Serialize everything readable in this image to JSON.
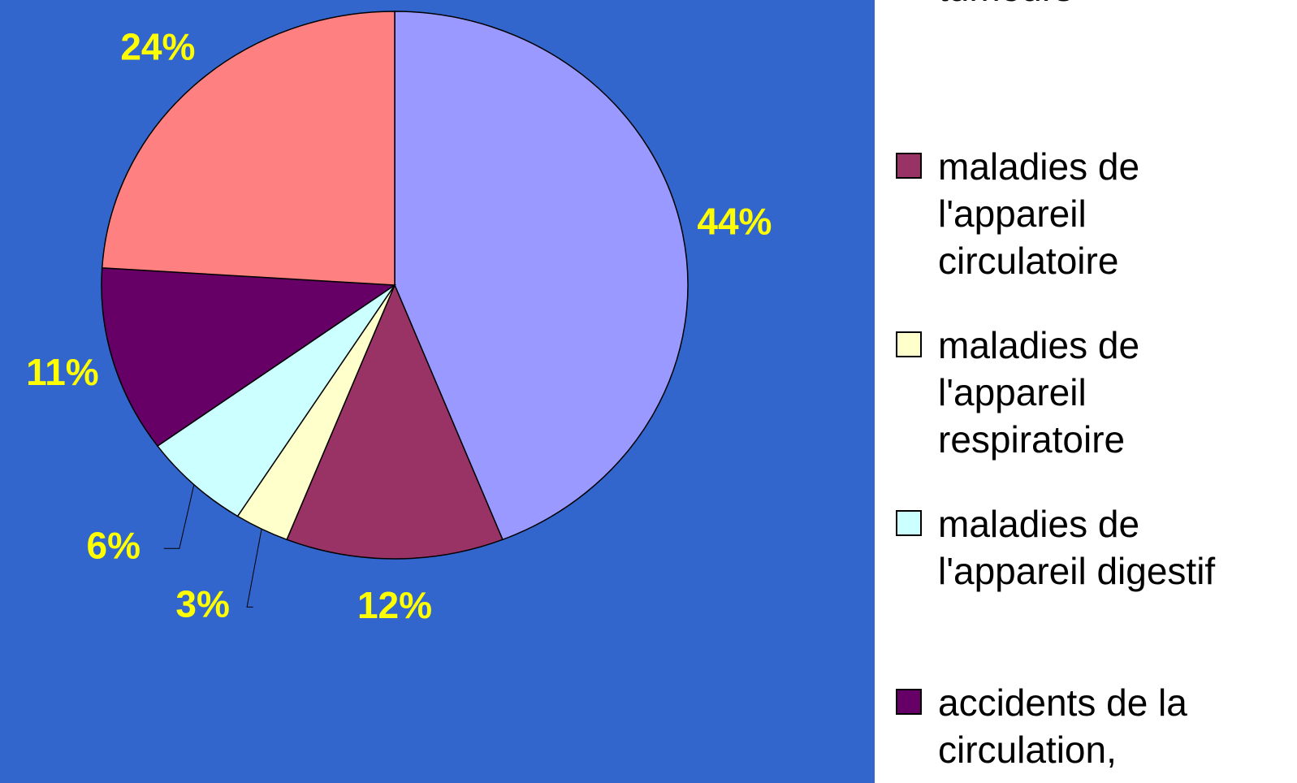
{
  "chart_data": {
    "type": "pie",
    "categories": [
      "tumeurs",
      "maladies de l'appareil circulatoire",
      "maladies de l'appareil respiratoire",
      "maladies de l'appareil digestif",
      "accidents de la circulation,",
      null
    ],
    "values": [
      44,
      12,
      3,
      6,
      11,
      24
    ],
    "value_labels": [
      "44%",
      "12%",
      "3%",
      "6%",
      "11%",
      "24%"
    ],
    "colors": [
      "#9999ff",
      "#993366",
      "#ffffcc",
      "#ccffff",
      "#660066",
      "#ff8080"
    ],
    "legend": "right"
  }
}
